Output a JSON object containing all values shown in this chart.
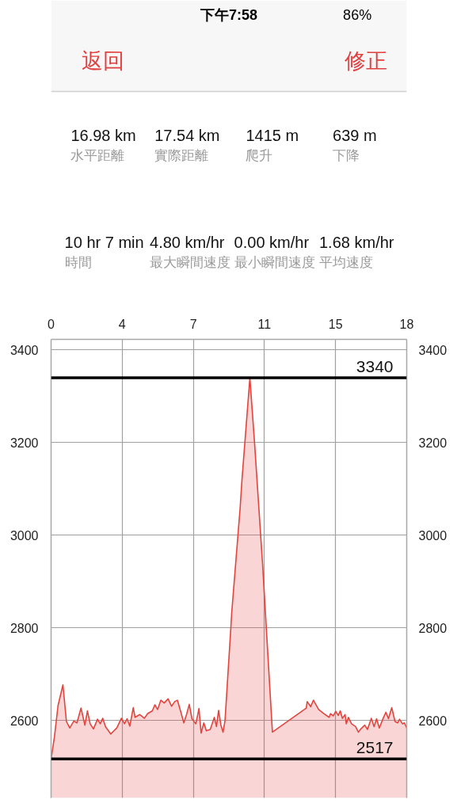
{
  "chart_data": [
    {
      "type": "other",
      "annotations": [
        "下午7:58",
        "86%",
        "返回",
        "修正",
        "16.98 km",
        "水平距離",
        "17.54 km",
        "實際距離",
        "1415 m",
        "爬升",
        "639 m",
        "下降",
        "10 hr 7 min",
        "時間",
        "4.80 km/hr",
        "最大瞬間速度",
        "0.00 km/hr",
        "最小瞬間速度",
        "1.68 km/hr",
        "平均速度"
      ]
    },
    {
      "type": "area",
      "xlim": [
        0,
        18.3
      ],
      "xticks": [
        0,
        {
          "value": 3.66,
          "label": "4"
        },
        {
          "value": 7.32,
          "label": "7"
        },
        {
          "value": 10.98,
          "label": "11"
        },
        {
          "value": 14.64,
          "label": "15"
        },
        {
          "value": 18.3,
          "label": "18"
        }
      ],
      "ylim": [
        2433,
        3423
      ],
      "yticks": [
        2600,
        2800,
        3000,
        3200,
        3400
      ],
      "y2lim": [
        2433,
        3423
      ],
      "y2ticks": [
        2600,
        2800,
        3000,
        3200,
        3400
      ],
      "grid": true,
      "series": [
        {
          "color": "#e3443e",
          "x": [
            0,
            0.17,
            0.36,
            0.61,
            0.79,
            0.96,
            1.17,
            1.33,
            1.54,
            1.74,
            1.87,
            2.01,
            2.18,
            2.39,
            2.53,
            2.66,
            2.8,
            3.07,
            3.38,
            3.62,
            3.78,
            3.91,
            4.05,
            4.23,
            4.32,
            4.56,
            4.8,
            4.97,
            5.21,
            5.34,
            5.48,
            5.65,
            5.82,
            6.02,
            6.2,
            6.36,
            6.5,
            6.7,
            6.83,
            6.97,
            7.11,
            7.25,
            7.45,
            7.61,
            7.72,
            7.86,
            7.99,
            8.19,
            8.4,
            8.51,
            8.62,
            8.74,
            8.85,
            8.95,
            9.25,
            9.29,
            9.73,
            9.82,
            10.23,
            10.47,
            10.88,
            11.39,
            13.13,
            13.18,
            13.36,
            13.5,
            13.77,
            14.04,
            14.31,
            14.38,
            14.52,
            14.65,
            14.78,
            14.88,
            14.99,
            15.13,
            15.19,
            15.3,
            15.46,
            15.67,
            15.81,
            15.94,
            16.14,
            16.28,
            16.48,
            16.62,
            16.75,
            16.89,
            17.09,
            17.23,
            17.36,
            17.53,
            17.7,
            17.84,
            17.93,
            18.08,
            18.18,
            18.3
          ],
          "values": [
            2517,
            2564,
            2633,
            2677,
            2598,
            2584,
            2599,
            2595,
            2627,
            2590,
            2621,
            2593,
            2582,
            2603,
            2593,
            2605,
            2587,
            2571,
            2584,
            2605,
            2593,
            2604,
            2588,
            2628,
            2607,
            2613,
            2605,
            2615,
            2621,
            2634,
            2624,
            2644,
            2638,
            2647,
            2631,
            2641,
            2644,
            2615,
            2595,
            2613,
            2635,
            2604,
            2593,
            2626,
            2573,
            2595,
            2578,
            2581,
            2607,
            2587,
            2622,
            2590,
            2575,
            2600,
            2800,
            2830,
            3060,
            3118,
            3340,
            3200,
            2940,
            2575,
            2627,
            2641,
            2630,
            2644,
            2624,
            2615,
            2607,
            2615,
            2610,
            2620,
            2611,
            2621,
            2605,
            2613,
            2593,
            2607,
            2593,
            2587,
            2575,
            2582,
            2590,
            2581,
            2605,
            2587,
            2604,
            2584,
            2605,
            2618,
            2604,
            2628,
            2598,
            2595,
            2603,
            2593,
            2595,
            2584
          ]
        }
      ],
      "ref_lines": [
        {
          "axis": "y",
          "value": 3340,
          "label": "3340",
          "color": "#000000"
        },
        {
          "axis": "y",
          "value": 2517,
          "label": "2517",
          "color": "#000000"
        }
      ]
    }
  ]
}
